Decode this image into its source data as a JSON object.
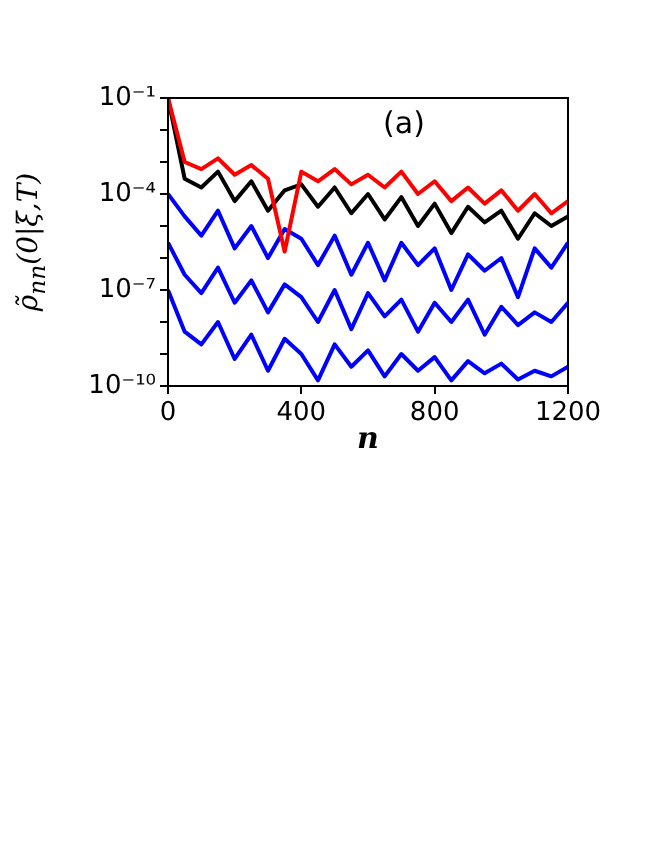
{
  "chart_data": {
    "type": "line",
    "xlabel": "n",
    "ylabel": "ρ̃$_{nn}$(0|ξ,T)",
    "annotations": [
      "(a)"
    ],
    "x": [
      0,
      50,
      100,
      150,
      200,
      250,
      300,
      350,
      400,
      450,
      500,
      550,
      600,
      650,
      700,
      750,
      800,
      850,
      900,
      950,
      1000,
      1050,
      1100,
      1150,
      1200
    ],
    "series": [
      {
        "color": "#ff0000",
        "values": [
          0.1,
          0.001,
          0.0006,
          0.0013,
          0.0004,
          0.0008,
          0.0003,
          1.6e-06,
          0.0005,
          0.00025,
          0.0006,
          0.0002,
          0.0004,
          0.00016,
          0.0005,
          0.0001,
          0.00025,
          6e-05,
          0.00016,
          5e-05,
          0.00013,
          3e-05,
          0.0001,
          2.5e-05,
          6e-05
        ]
      },
      {
        "color": "#000000",
        "values": [
          0.1,
          0.0003,
          0.00016,
          0.0005,
          6e-05,
          0.00025,
          3e-05,
          0.00013,
          0.0002,
          4e-05,
          0.00016,
          2.5e-05,
          0.0001,
          1.6e-05,
          8e-05,
          1e-05,
          5e-05,
          6e-06,
          4e-05,
          1.3e-05,
          3e-05,
          4e-06,
          2.5e-05,
          1e-05,
          2e-05
        ]
      },
      {
        "color": "#0000ff",
        "values": [
          0.0001,
          2e-05,
          5e-06,
          3e-05,
          2e-06,
          1e-05,
          1e-06,
          8e-06,
          4e-06,
          6e-07,
          5e-06,
          3e-07,
          3e-06,
          2e-07,
          3e-06,
          6e-07,
          2e-06,
          1e-07,
          1.3e-06,
          4e-07,
          1e-06,
          6e-08,
          2e-06,
          5e-07,
          3e-06
        ]
      },
      {
        "color": "#0000ff",
        "values": [
          3e-06,
          3e-07,
          8e-08,
          5e-07,
          4e-08,
          2e-07,
          2e-08,
          1.5e-07,
          6e-08,
          1e-08,
          1e-07,
          6e-09,
          8e-08,
          1.5e-08,
          5e-08,
          5e-09,
          4e-08,
          1e-08,
          5e-08,
          4e-09,
          3e-08,
          8e-09,
          2e-08,
          1e-08,
          4e-08
        ]
      },
      {
        "color": "#0000ff",
        "values": [
          1e-07,
          5e-09,
          2e-09,
          1e-08,
          7e-10,
          4e-09,
          3e-10,
          3e-09,
          1e-09,
          1.5e-10,
          2e-09,
          4e-10,
          1.3e-09,
          2e-10,
          1e-09,
          3e-10,
          8e-10,
          1.5e-10,
          6e-10,
          2.5e-10,
          5e-10,
          1.6e-10,
          3e-10,
          2e-10,
          4e-10
        ]
      }
    ],
    "log": "y",
    "xlim": [
      0,
      1200
    ],
    "xticks": [
      0,
      400,
      800,
      1200
    ],
    "ylim": [
      1e-10,
      0.1
    ],
    "yticks": [
      {
        "value": 1e-10,
        "label": "10⁻¹⁰"
      },
      {
        "value": 1e-09,
        "label": null
      },
      {
        "value": 1e-08,
        "label": null
      },
      {
        "value": 1e-07,
        "label": "10⁻⁷"
      },
      {
        "value": 1e-06,
        "label": null
      },
      {
        "value": 1e-05,
        "label": null
      },
      {
        "value": 0.0001,
        "label": "10⁻⁴"
      },
      {
        "value": 0.001,
        "label": null
      },
      {
        "value": 0.01,
        "label": null
      },
      {
        "value": 0.1,
        "label": "10⁻¹"
      }
    ],
    "grid": false,
    "legend": false,
    "marker": "none",
    "line_style": "solid"
  }
}
